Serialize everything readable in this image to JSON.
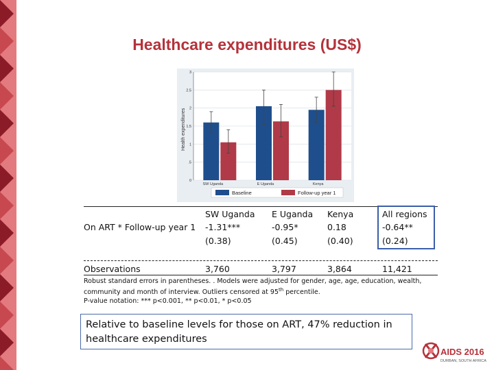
{
  "slide": {
    "title": "Healthcare expenditures (US$)",
    "colors": {
      "title": "#b5323a",
      "band_dark": "#8c1b28",
      "band_light": "#e37a7f"
    }
  },
  "chart_data": {
    "type": "bar",
    "ylabel": "Health expenditures",
    "ylim": [
      0,
      3
    ],
    "yticks": [
      "0",
      ".5",
      "1",
      "1.5",
      "2",
      "2.5",
      "3"
    ],
    "categories": [
      "SW Uganda",
      "E Uganda",
      "Kenya"
    ],
    "series": [
      {
        "name": "Baseline",
        "color": "#1f4e8c",
        "values": [
          1.6,
          2.05,
          1.95
        ],
        "err_low": [
          1.3,
          1.55,
          1.6
        ],
        "err_high": [
          1.9,
          2.5,
          2.3
        ]
      },
      {
        "name": "Follow-up year 1",
        "color": "#b03a48",
        "values": [
          1.05,
          1.63,
          2.5
        ],
        "err_low": [
          0.75,
          1.2,
          2.05
        ],
        "err_high": [
          1.4,
          2.1,
          3.0
        ]
      }
    ],
    "legend": "bottom",
    "grid": true
  },
  "table": {
    "columns": [
      "SW Uganda",
      "E Uganda",
      "Kenya",
      "All regions"
    ],
    "row1_label": "On ART * Follow-up year 1",
    "estimates": [
      "-1.31***",
      "-0.95*",
      "0.18",
      "-0.64**"
    ],
    "std_errors": [
      "(0.38)",
      "(0.45)",
      "(0.40)",
      "(0.24)"
    ],
    "obs_label": "Observations",
    "observations": [
      "3,760",
      "3,797",
      "3,864",
      "11,421"
    ]
  },
  "notes": {
    "line1": "Robust standard errors in parentheses. . Models were adjusted for gender, age, age, education, wealth,",
    "line2_pre": "community and month of interview. Outliers censored at 95",
    "line2_sup": "th",
    "line2_post": " percentile.",
    "line3": "P-value notation: *** p<0.001, ** p<0.01, * p<0.05"
  },
  "callout": "Relative to baseline levels for those on ART, 47% reduction in healthcare expenditures",
  "logo": {
    "text": "AIDS 2016",
    "subtext": "DURBAN, SOUTH AFRICA"
  }
}
